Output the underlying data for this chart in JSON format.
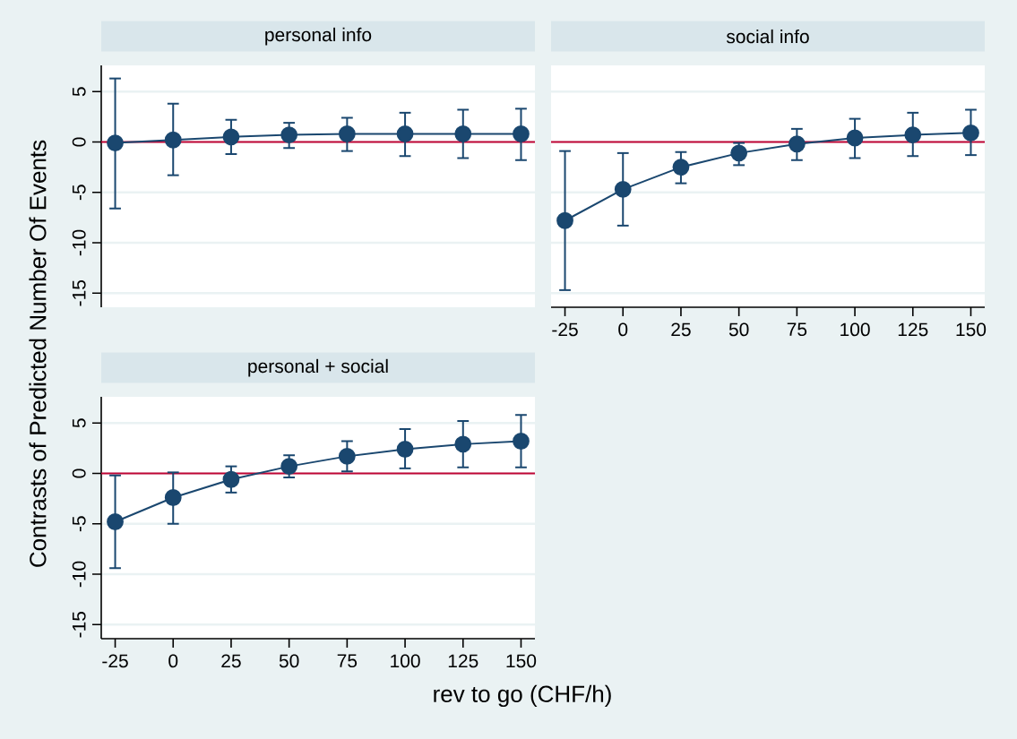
{
  "chart_data": [
    {
      "type": "line",
      "title": "personal info",
      "x": [
        -25,
        0,
        25,
        50,
        75,
        100,
        125,
        150
      ],
      "series": [
        {
          "color": "#1a476f",
          "values": [
            -0.1,
            0.2,
            0.5,
            0.7,
            0.8,
            0.8,
            0.8,
            0.8
          ],
          "errors": [
            [
              -6.6,
              6.3
            ],
            [
              -3.3,
              3.8
            ],
            [
              -1.2,
              2.2
            ],
            [
              -0.6,
              1.9
            ],
            [
              -0.9,
              2.4
            ],
            [
              -1.4,
              2.9
            ],
            [
              -1.6,
              3.2
            ],
            [
              -1.8,
              3.3
            ]
          ]
        }
      ],
      "ref_lines": [
        {
          "axis": "y",
          "value": 0,
          "color": "#c10534"
        }
      ],
      "xlim": [
        -31,
        156
      ],
      "ylim": [
        -16.4,
        7.6
      ],
      "xticks": [
        -25,
        0,
        25,
        50,
        75,
        100,
        125,
        150
      ],
      "yticks": [
        -15,
        -10,
        -5,
        0,
        5
      ],
      "grid": "y",
      "marker": "circle",
      "tick_labels": "y"
    },
    {
      "type": "line",
      "title": "social info",
      "x": [
        -25,
        0,
        25,
        50,
        75,
        100,
        125,
        150
      ],
      "series": [
        {
          "color": "#1a476f",
          "values": [
            -7.8,
            -4.7,
            -2.5,
            -1.1,
            -0.2,
            0.4,
            0.7,
            0.9
          ],
          "errors": [
            [
              -14.7,
              -0.9
            ],
            [
              -8.3,
              -1.1
            ],
            [
              -4.1,
              -1.0
            ],
            [
              -2.3,
              -0.1
            ],
            [
              -1.8,
              1.3
            ],
            [
              -1.6,
              2.3
            ],
            [
              -1.4,
              2.9
            ],
            [
              -1.3,
              3.2
            ]
          ]
        }
      ],
      "ref_lines": [
        {
          "axis": "y",
          "value": 0,
          "color": "#c10534"
        }
      ],
      "xlim": [
        -31,
        156
      ],
      "ylim": [
        -16.4,
        7.6
      ],
      "xticks": [
        -25,
        0,
        25,
        50,
        75,
        100,
        125,
        150
      ],
      "yticks": [
        -15,
        -10,
        -5,
        0,
        5
      ],
      "grid": "y",
      "marker": "circle",
      "tick_labels": "x"
    },
    {
      "type": "line",
      "title": "personal + social",
      "xlabel": "rev to go (CHF/h)",
      "ylabel": "Contrasts of Predicted Number Of Events",
      "x": [
        -25,
        0,
        25,
        50,
        75,
        100,
        125,
        150
      ],
      "series": [
        {
          "color": "#1a476f",
          "values": [
            -4.8,
            -2.4,
            -0.6,
            0.7,
            1.7,
            2.4,
            2.9,
            3.2
          ],
          "errors": [
            [
              -9.4,
              -0.2
            ],
            [
              -5.0,
              0.1
            ],
            [
              -1.9,
              0.7
            ],
            [
              -0.4,
              1.8
            ],
            [
              0.2,
              3.2
            ],
            [
              0.5,
              4.4
            ],
            [
              0.6,
              5.2
            ],
            [
              0.6,
              5.8
            ]
          ]
        }
      ],
      "ref_lines": [
        {
          "axis": "y",
          "value": 0,
          "color": "#c10534"
        }
      ],
      "xlim": [
        -31,
        156
      ],
      "ylim": [
        -16.4,
        7.6
      ],
      "xticks": [
        -25,
        0,
        25,
        50,
        75,
        100,
        125,
        150
      ],
      "yticks": [
        -15,
        -10,
        -5,
        0,
        5
      ],
      "grid": "y",
      "marker": "circle"
    }
  ]
}
